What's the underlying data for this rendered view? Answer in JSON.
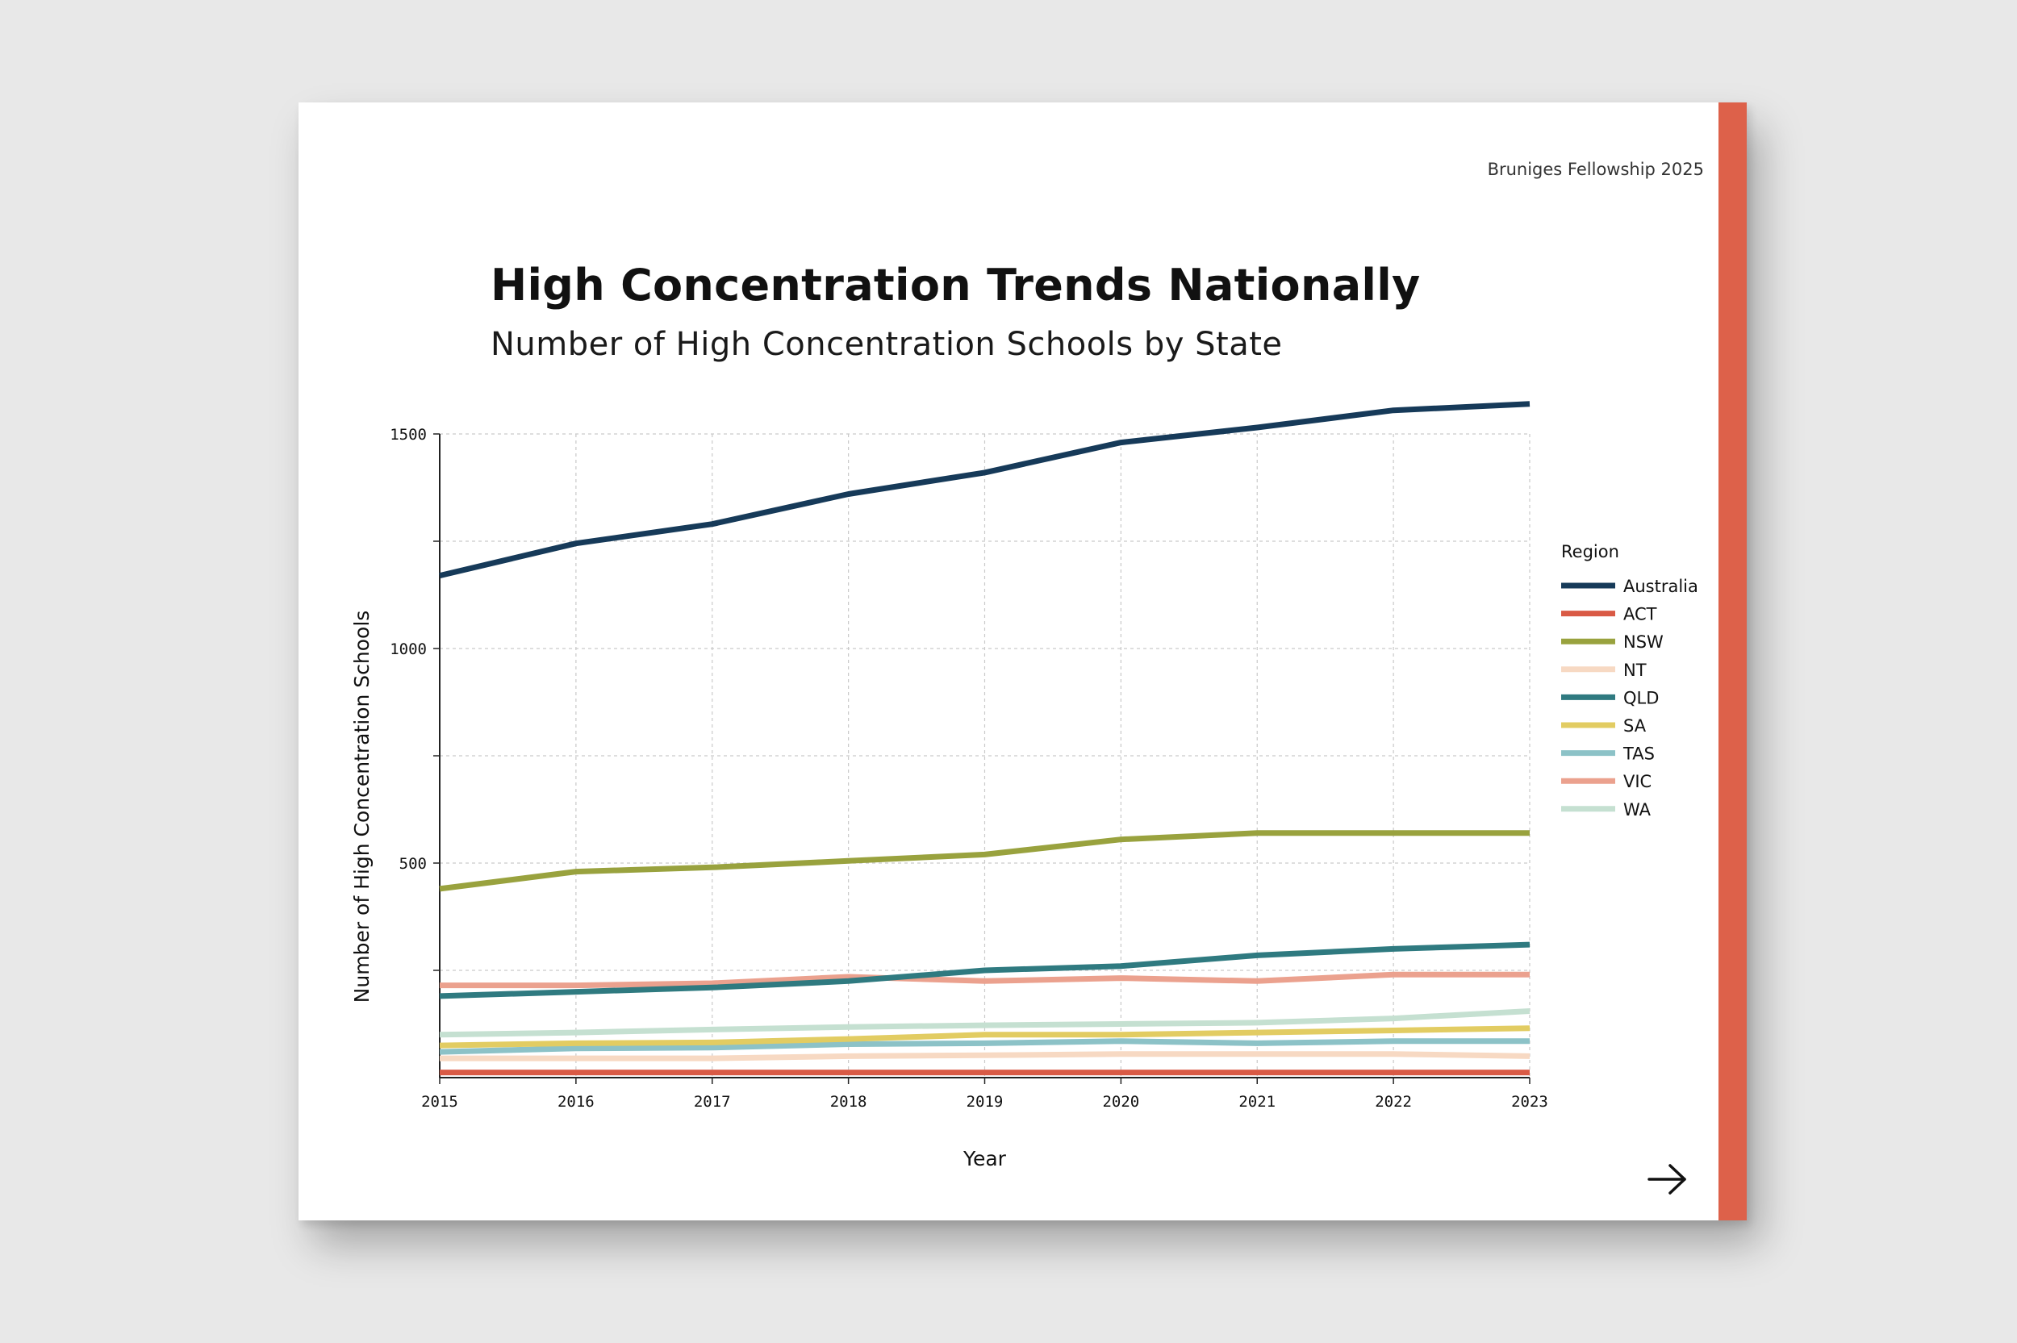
{
  "header": {
    "tag": "Bruniges Fellowship 2025"
  },
  "chart_data": {
    "type": "line",
    "title": "High Concentration Trends Nationally",
    "subtitle": "Number of High Concentration Schools by State",
    "xlabel": "Year",
    "ylabel": "Number of High Concentration Schools",
    "x": [
      2015,
      2016,
      2017,
      2018,
      2019,
      2020,
      2021,
      2022,
      2023
    ],
    "ylim": [
      0,
      1500
    ],
    "yticks": [
      500,
      1000,
      1500
    ],
    "grid": true,
    "legend": {
      "title": "Region",
      "placement": "right"
    },
    "series": [
      {
        "name": "Australia",
        "color": "#163a59",
        "values": [
          1170,
          1245,
          1290,
          1360,
          1410,
          1480,
          1515,
          1555,
          1570
        ]
      },
      {
        "name": "ACT",
        "color": "#d95a45",
        "values": [
          12,
          12,
          12,
          12,
          12,
          12,
          12,
          12,
          12
        ]
      },
      {
        "name": "NSW",
        "color": "#99a23e",
        "values": [
          440,
          480,
          490,
          505,
          520,
          555,
          570,
          570,
          570
        ]
      },
      {
        "name": "NT",
        "color": "#f7d9c3",
        "values": [
          45,
          45,
          45,
          50,
          52,
          55,
          55,
          55,
          50
        ]
      },
      {
        "name": "QLD",
        "color": "#2f7a80",
        "values": [
          190,
          200,
          210,
          225,
          250,
          260,
          285,
          300,
          310
        ]
      },
      {
        "name": "SA",
        "color": "#e2cc62",
        "values": [
          75,
          80,
          82,
          90,
          100,
          100,
          105,
          110,
          115
        ]
      },
      {
        "name": "TAS",
        "color": "#8cc2c7",
        "values": [
          60,
          68,
          70,
          78,
          80,
          85,
          80,
          85,
          85
        ]
      },
      {
        "name": "VIC",
        "color": "#eba18e",
        "values": [
          215,
          215,
          220,
          235,
          225,
          232,
          225,
          240,
          240
        ]
      },
      {
        "name": "WA",
        "color": "#c5e0d1",
        "values": [
          100,
          105,
          112,
          118,
          122,
          125,
          128,
          138,
          155
        ]
      }
    ]
  },
  "icons": {
    "next": "arrow-right-icon"
  }
}
